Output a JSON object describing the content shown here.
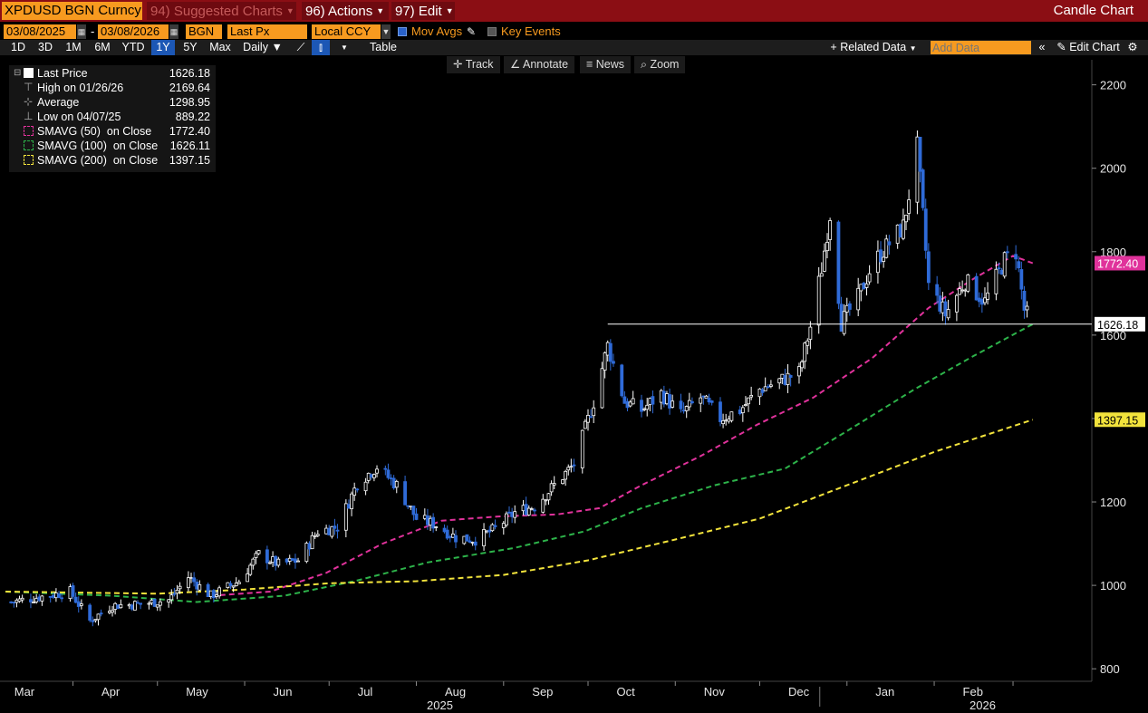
{
  "header": {
    "ticker": "XPDUSD BGN Curncy",
    "menu_suggested": "94) Suggested Charts",
    "menu_actions": "96) Actions",
    "menu_edit": "97) Edit",
    "title": "Candle Chart"
  },
  "controls": {
    "start_date": "03/08/2025",
    "end_date": "03/08/2026",
    "source": "BGN",
    "field": "Last Px",
    "currency": "Local CCY",
    "mov_avgs": "Mov Avgs",
    "key_events": "Key Events",
    "ranges": [
      "1D",
      "3D",
      "1M",
      "6M",
      "YTD",
      "1Y",
      "5Y",
      "Max"
    ],
    "selected_range": "1Y",
    "periodicity": "Daily",
    "table": "Table",
    "related_data": "+ Related Data",
    "add_data_placeholder": "Add Data",
    "edit_chart": "Edit Chart"
  },
  "tools": [
    "Track",
    "Annotate",
    "News",
    "Zoom"
  ],
  "legend": [
    {
      "label": "Last Price",
      "value": "1626.18"
    },
    {
      "label": "High on 01/26/26",
      "value": "2169.64"
    },
    {
      "label": "Average",
      "value": "1298.95"
    },
    {
      "label": "Low on 04/07/25",
      "value": "889.22"
    },
    {
      "label": "SMAVG (50)  on Close",
      "value": "1772.40"
    },
    {
      "label": "SMAVG (100)  on Close",
      "value": "1626.11"
    },
    {
      "label": "SMAVG (200)  on Close",
      "value": "1397.15"
    }
  ],
  "colors": {
    "up": "#ffffff",
    "down": "#2f6bd8",
    "sma50": "#e0329b",
    "sma100": "#2db34a",
    "sma200": "#f2e33c",
    "accent": "#f79a1f",
    "bar": "#8b0e14"
  },
  "chart_data": {
    "type": "candlestick",
    "y_ticks": [
      800,
      1000,
      1200,
      1400,
      1600,
      1800,
      2000,
      2200
    ],
    "ylim": [
      770,
      2260
    ],
    "x_labels": [
      "Mar",
      "Apr",
      "May",
      "Jun",
      "Jul",
      "Aug",
      "Sep",
      "Oct",
      "Nov",
      "Dec",
      "Jan",
      "Feb"
    ],
    "year_labels": [
      "2025",
      "2026"
    ],
    "last_price": 1626.18,
    "price_tags": [
      {
        "text": "1772.40",
        "value": 1772.4,
        "color": "#e0329b"
      },
      {
        "text": "1626.18",
        "value": 1626.18,
        "color": "#ffffff"
      },
      {
        "text": "1397.15",
        "value": 1397.15,
        "color": "#f2e33c"
      }
    ],
    "close_path": [
      [
        "2025-03-10",
        960
      ],
      [
        "2025-03-20",
        972
      ],
      [
        "2025-03-31",
        985
      ],
      [
        "2025-04-07",
        915
      ],
      [
        "2025-04-15",
        952
      ],
      [
        "2025-04-25",
        955
      ],
      [
        "2025-05-05",
        965
      ],
      [
        "2025-05-12",
        1020
      ],
      [
        "2025-05-20",
        975
      ],
      [
        "2025-05-30",
        1010
      ],
      [
        "2025-06-06",
        1075
      ],
      [
        "2025-06-13",
        1050
      ],
      [
        "2025-06-20",
        1060
      ],
      [
        "2025-06-27",
        1130
      ],
      [
        "2025-07-04",
        1140
      ],
      [
        "2025-07-11",
        1245
      ],
      [
        "2025-07-18",
        1285
      ],
      [
        "2025-07-25",
        1240
      ],
      [
        "2025-08-01",
        1160
      ],
      [
        "2025-08-08",
        1145
      ],
      [
        "2025-08-15",
        1115
      ],
      [
        "2025-08-22",
        1110
      ],
      [
        "2025-08-29",
        1135
      ],
      [
        "2025-09-05",
        1175
      ],
      [
        "2025-09-12",
        1190
      ],
      [
        "2025-09-19",
        1240
      ],
      [
        "2025-09-26",
        1290
      ],
      [
        "2025-10-03",
        1440
      ],
      [
        "2025-10-08",
        1575
      ],
      [
        "2025-10-14",
        1440
      ],
      [
        "2025-10-20",
        1420
      ],
      [
        "2025-10-27",
        1460
      ],
      [
        "2025-11-03",
        1410
      ],
      [
        "2025-11-10",
        1450
      ],
      [
        "2025-11-17",
        1400
      ],
      [
        "2025-11-24",
        1420
      ],
      [
        "2025-12-01",
        1470
      ],
      [
        "2025-12-08",
        1490
      ],
      [
        "2025-12-15",
        1510
      ],
      [
        "2025-12-19",
        1620
      ],
      [
        "2025-12-23",
        1760
      ],
      [
        "2025-12-26",
        1890
      ],
      [
        "2025-12-30",
        1630
      ],
      [
        "2026-01-05",
        1690
      ],
      [
        "2026-01-10",
        1770
      ],
      [
        "2026-01-16",
        1820
      ],
      [
        "2026-01-21",
        1860
      ],
      [
        "2026-01-26",
        2050
      ],
      [
        "2026-01-30",
        1720
      ],
      [
        "2026-02-05",
        1650
      ],
      [
        "2026-02-12",
        1730
      ],
      [
        "2026-02-19",
        1680
      ],
      [
        "2026-02-26",
        1780
      ],
      [
        "2026-03-02",
        1800
      ],
      [
        "2026-03-05",
        1660
      ],
      [
        "2026-03-08",
        1626.18
      ]
    ],
    "series": [
      {
        "name": "SMAVG (50)",
        "color": "#e0329b",
        "points": [
          [
            "2025-05-20",
            975
          ],
          [
            "2025-06-10",
            985
          ],
          [
            "2025-06-30",
            1030
          ],
          [
            "2025-07-20",
            1100
          ],
          [
            "2025-08-10",
            1155
          ],
          [
            "2025-08-30",
            1165
          ],
          [
            "2025-09-20",
            1170
          ],
          [
            "2025-10-05",
            1185
          ],
          [
            "2025-10-20",
            1240
          ],
          [
            "2025-11-10",
            1310
          ],
          [
            "2025-11-30",
            1385
          ],
          [
            "2025-12-20",
            1450
          ],
          [
            "2026-01-10",
            1545
          ],
          [
            "2026-01-30",
            1665
          ],
          [
            "2026-02-15",
            1735
          ],
          [
            "2026-03-01",
            1790
          ],
          [
            "2026-03-08",
            1772.4
          ]
        ]
      },
      {
        "name": "SMAVG (100)",
        "color": "#2db34a",
        "points": [
          [
            "2025-03-08",
            985
          ],
          [
            "2025-04-15",
            975
          ],
          [
            "2025-05-15",
            960
          ],
          [
            "2025-06-15",
            975
          ],
          [
            "2025-07-10",
            1010
          ],
          [
            "2025-08-05",
            1055
          ],
          [
            "2025-09-05",
            1090
          ],
          [
            "2025-09-30",
            1130
          ],
          [
            "2025-10-20",
            1185
          ],
          [
            "2025-11-15",
            1240
          ],
          [
            "2025-12-10",
            1280
          ],
          [
            "2026-01-01",
            1370
          ],
          [
            "2026-01-25",
            1470
          ],
          [
            "2026-02-15",
            1550
          ],
          [
            "2026-03-08",
            1626.11
          ]
        ]
      },
      {
        "name": "SMAVG (200)",
        "color": "#f2e33c",
        "points": [
          [
            "2025-03-08",
            985
          ],
          [
            "2025-05-01",
            980
          ],
          [
            "2025-06-01",
            990
          ],
          [
            "2025-07-01",
            1005
          ],
          [
            "2025-08-01",
            1010
          ],
          [
            "2025-09-01",
            1025
          ],
          [
            "2025-10-01",
            1060
          ],
          [
            "2025-11-01",
            1110
          ],
          [
            "2025-12-01",
            1160
          ],
          [
            "2026-01-01",
            1240
          ],
          [
            "2026-02-01",
            1320
          ],
          [
            "2026-03-08",
            1397.15
          ]
        ]
      }
    ]
  }
}
